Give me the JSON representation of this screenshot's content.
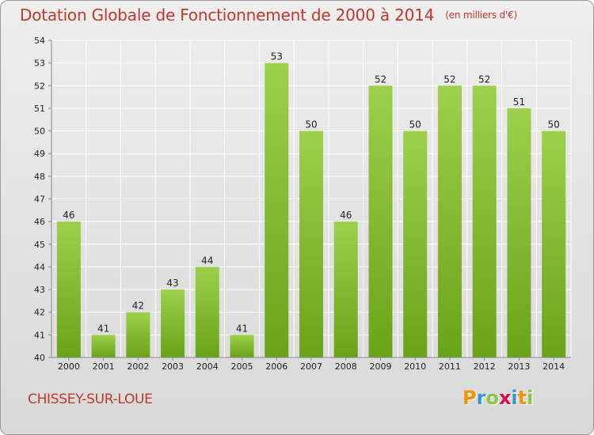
{
  "header": {
    "title": "Dotation Globale de Fonctionnement de 2000 à 2014",
    "subtitle": "(en milliers d'€)"
  },
  "footer": {
    "commune": "CHISSEY-SUR-LOUE",
    "logo": {
      "letters": [
        "P",
        "r",
        "o",
        "x",
        "i",
        "t",
        "i"
      ],
      "colors": [
        "#f29400",
        "#3399cc",
        "#8dc63f",
        "#e4004b",
        "#3399cc",
        "#f29400",
        "#8dc63f"
      ]
    }
  },
  "chart_data": {
    "type": "bar",
    "categories": [
      "2000",
      "2001",
      "2002",
      "2003",
      "2004",
      "2005",
      "2006",
      "2007",
      "2008",
      "2009",
      "2010",
      "2011",
      "2012",
      "2013",
      "2014"
    ],
    "values": [
      46,
      41,
      42,
      43,
      44,
      41,
      53,
      50,
      46,
      52,
      50,
      52,
      52,
      51,
      50
    ],
    "ylim": [
      40,
      54
    ],
    "yticks": [
      40,
      41,
      42,
      43,
      44,
      45,
      46,
      47,
      48,
      49,
      50,
      51,
      52,
      53,
      54
    ],
    "grid": true,
    "colors": {
      "bar_light": "#9dd04c",
      "bar_dark": "#6aa318",
      "grid": "#ffffff",
      "axis": "#888888"
    }
  }
}
